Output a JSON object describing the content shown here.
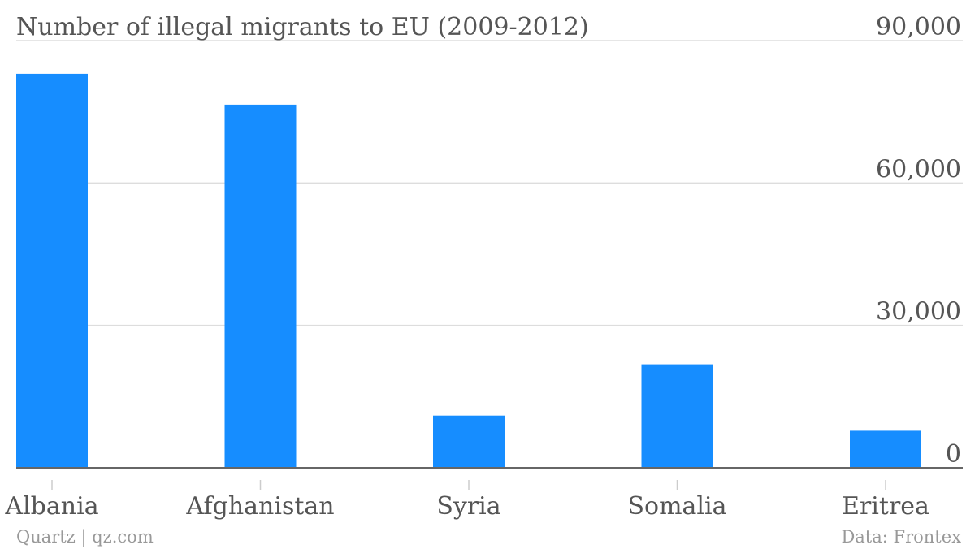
{
  "chart_data": {
    "type": "bar",
    "title": "Number of illegal migrants to EU (2009-2012)",
    "categories": [
      "Albania",
      "Afghanistan",
      "Syria",
      "Somalia",
      "Eritrea"
    ],
    "values": [
      83000,
      76500,
      11000,
      21800,
      7800
    ],
    "ylim": [
      0,
      90000
    ],
    "yticks": [
      0,
      30000,
      60000,
      90000
    ],
    "ytick_labels": [
      "0",
      "30,000",
      "60,000",
      "90,000"
    ],
    "y_axis_side": "right",
    "grid": true,
    "bar_color": "#168dff",
    "legend": "none"
  },
  "footer": {
    "left": "Quartz | qz.com",
    "right": "Data: Frontex"
  }
}
